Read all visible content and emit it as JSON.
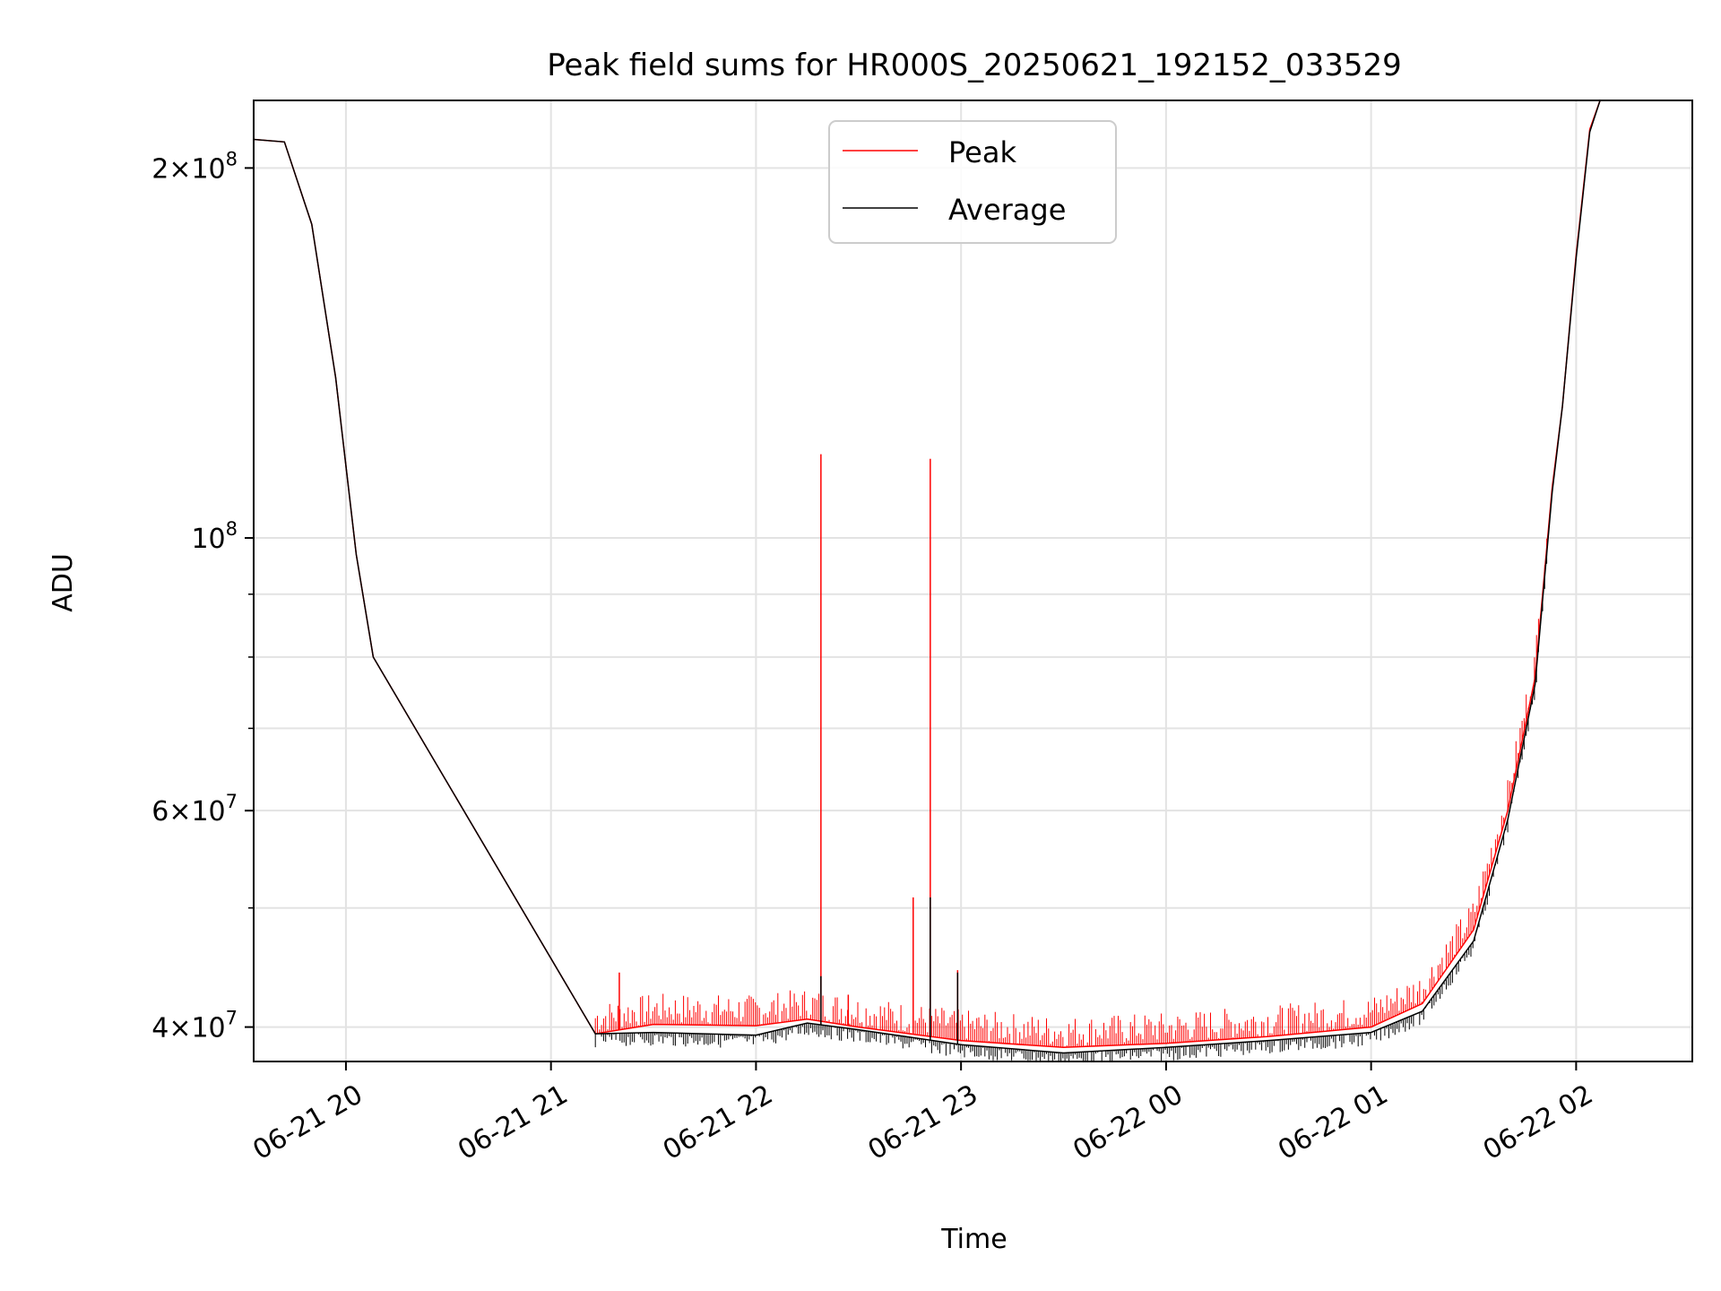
{
  "chart_data": {
    "type": "line",
    "title": "Peak field sums for HR000S_20250621_192152_033529",
    "xlabel": "Time",
    "ylabel": "ADU",
    "xlim": [
      "2025-06-21 19:33",
      "2025-06-22 02:34"
    ],
    "ylim": [
      37500000,
      227000000
    ],
    "yscale": "log",
    "grid": true,
    "legend_position": "top-center",
    "x_ticks": [
      {
        "time": "2025-06-21 20:00",
        "label": "06-21 20"
      },
      {
        "time": "2025-06-21 21:00",
        "label": "06-21 21"
      },
      {
        "time": "2025-06-21 22:00",
        "label": "06-21 22"
      },
      {
        "time": "2025-06-21 23:00",
        "label": "06-21 23"
      },
      {
        "time": "2025-06-22 00:00",
        "label": "06-22 00"
      },
      {
        "time": "2025-06-22 01:00",
        "label": "06-22 01"
      },
      {
        "time": "2025-06-22 02:00",
        "label": "06-22 02"
      }
    ],
    "y_ticks": [
      {
        "value": 40000000,
        "mant": "4",
        "exp": "7"
      },
      {
        "value": 60000000,
        "mant": "6",
        "exp": "7"
      },
      {
        "value": 100000000,
        "mant": "",
        "exp": "8"
      },
      {
        "value": 200000000,
        "mant": "2",
        "exp": "8"
      }
    ],
    "y_minor_ticks": [
      50000000,
      70000000,
      80000000,
      90000000
    ],
    "series": [
      {
        "name": "Peak",
        "color": "#ff0000",
        "points": [
          [
            "2025-06-21 19:33",
            211000000
          ],
          [
            "2025-06-21 19:42",
            210000000
          ],
          [
            "2025-06-21 19:50",
            180000000
          ],
          [
            "2025-06-21 19:57",
            135000000
          ],
          [
            "2025-06-21 20:03",
            97000000
          ],
          [
            "2025-06-21 20:08",
            80000000
          ],
          [
            "2025-06-21 21:13",
            39500000
          ],
          [
            "2025-06-21 21:30",
            40200000
          ],
          [
            "2025-06-21 22:00",
            40100000
          ],
          [
            "2025-06-21 22:15",
            40600000
          ],
          [
            "2025-06-21 22:30",
            40000000
          ],
          [
            "2025-06-21 23:00",
            39000000
          ],
          [
            "2025-06-21 23:30",
            38500000
          ],
          [
            "2025-06-22 00:00",
            38800000
          ],
          [
            "2025-06-22 00:30",
            39300000
          ],
          [
            "2025-06-22 01:00",
            40000000
          ],
          [
            "2025-06-22 01:15",
            41800000
          ],
          [
            "2025-06-22 01:30",
            48000000
          ],
          [
            "2025-06-22 01:40",
            60000000
          ],
          [
            "2025-06-22 01:48",
            77000000
          ],
          [
            "2025-06-22 01:53",
            110000000
          ],
          [
            "2025-06-22 01:56",
            128000000
          ],
          [
            "2025-06-22 02:00",
            170000000
          ],
          [
            "2025-06-22 02:04",
            215000000
          ],
          [
            "2025-06-22 02:07",
            227000000
          ]
        ],
        "noise_start": "2025-06-21 21:13",
        "noise_end": "2025-06-22 01:52",
        "spikes": [
          [
            "2025-06-21 21:20",
            44300000
          ],
          [
            "2025-06-21 22:19",
            117000000
          ],
          [
            "2025-06-21 22:27",
            42500000
          ],
          [
            "2025-06-21 22:46",
            51000000
          ],
          [
            "2025-06-21 22:51",
            116000000
          ],
          [
            "2025-06-21 22:59",
            44500000
          ]
        ]
      },
      {
        "name": "Average",
        "color": "#000000",
        "points": [
          [
            "2025-06-21 19:33",
            211000000
          ],
          [
            "2025-06-21 19:42",
            210000000
          ],
          [
            "2025-06-21 19:50",
            180000000
          ],
          [
            "2025-06-21 19:57",
            135000000
          ],
          [
            "2025-06-21 20:03",
            97000000
          ],
          [
            "2025-06-21 20:08",
            80000000
          ],
          [
            "2025-06-21 21:13",
            39500000
          ],
          [
            "2025-06-21 21:30",
            39600000
          ],
          [
            "2025-06-21 22:00",
            39400000
          ],
          [
            "2025-06-21 22:15",
            40300000
          ],
          [
            "2025-06-21 22:30",
            39800000
          ],
          [
            "2025-06-21 23:00",
            38700000
          ],
          [
            "2025-06-21 23:30",
            38100000
          ],
          [
            "2025-06-22 00:00",
            38500000
          ],
          [
            "2025-06-22 00:30",
            39000000
          ],
          [
            "2025-06-22 01:00",
            39600000
          ],
          [
            "2025-06-22 01:15",
            41200000
          ],
          [
            "2025-06-22 01:30",
            47000000
          ],
          [
            "2025-06-22 01:40",
            59000000
          ],
          [
            "2025-06-22 01:48",
            76000000
          ],
          [
            "2025-06-22 01:53",
            109000000
          ],
          [
            "2025-06-22 01:56",
            128000000
          ],
          [
            "2025-06-22 02:00",
            169000000
          ],
          [
            "2025-06-22 02:04",
            214000000
          ],
          [
            "2025-06-22 02:07",
            227000000
          ]
        ],
        "spikes": [
          [
            "2025-06-21 22:19",
            44000000
          ],
          [
            "2025-06-21 22:51",
            51000000
          ],
          [
            "2025-06-21 22:59",
            44300000
          ]
        ]
      }
    ]
  }
}
